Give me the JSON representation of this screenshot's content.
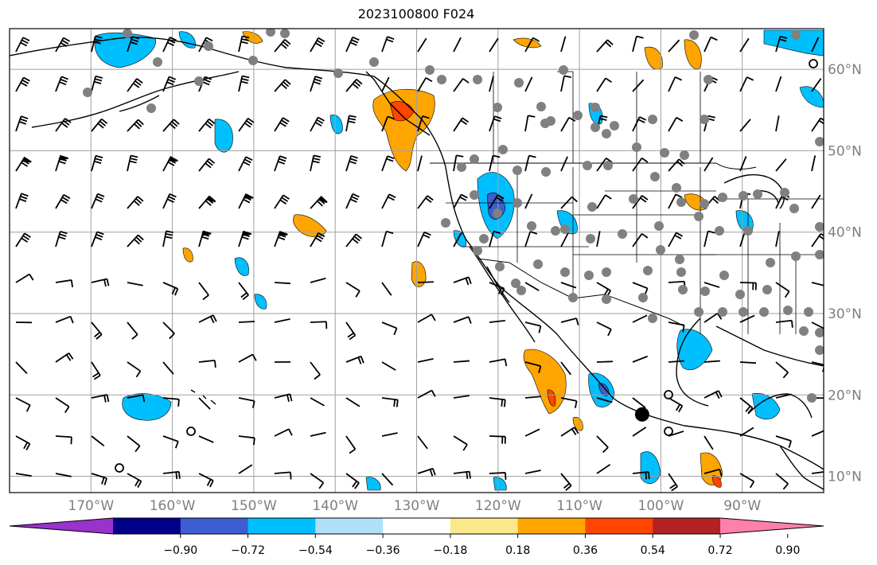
{
  "title": "2023100800 F024",
  "map": {
    "lon_range": [
      -180,
      -80
    ],
    "lat_range": [
      8,
      65
    ],
    "latitude_labels": [
      "10°N",
      "20°N",
      "30°N",
      "40°N",
      "50°N",
      "60°N"
    ],
    "latitude_values": [
      10,
      20,
      30,
      40,
      50,
      60
    ],
    "longitude_labels": [
      "170°W",
      "160°W",
      "150°W",
      "140°W",
      "130°W",
      "120°W",
      "110°W",
      "100°W",
      "90°W"
    ],
    "longitude_values": [
      -170,
      -160,
      -150,
      -140,
      -130,
      -120,
      -110,
      -100,
      -90
    ],
    "grid": true,
    "layers": [
      "coastlines",
      "borders",
      "state-lines",
      "wind-barbs",
      "shaded-contours",
      "station-dots"
    ],
    "marker": {
      "lon": -102.3,
      "lat": 17.6,
      "color": "#000000"
    }
  },
  "colorbar": {
    "tick_labels": [
      "−0.90",
      "−0.72",
      "−0.54",
      "−0.36",
      "−0.18",
      "0.18",
      "0.36",
      "0.54",
      "0.72",
      "0.90"
    ],
    "ticks": [
      -0.9,
      -0.72,
      -0.54,
      -0.36,
      -0.18,
      0.18,
      0.36,
      0.54,
      0.72,
      0.9
    ],
    "colors": [
      "#9933cc",
      "#000088",
      "#3c5ed0",
      "#00bfff",
      "#b0e0f8",
      "#ffffff",
      "#fbe88a",
      "#ffa500",
      "#ff4500",
      "#b22222",
      "#ff80a8"
    ],
    "extend": "both"
  }
}
